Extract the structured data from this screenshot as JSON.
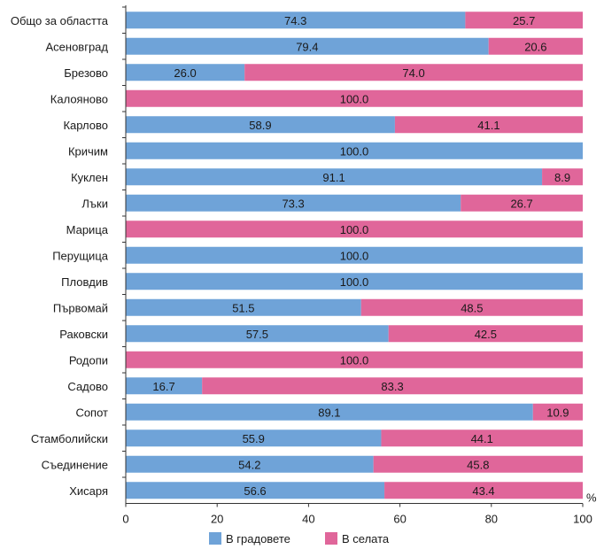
{
  "chart_data": {
    "type": "bar",
    "orientation": "horizontal",
    "stacked": true,
    "categories": [
      "Общо за областта",
      "Асеновград",
      "Брезово",
      "Калояново",
      "Карлово",
      "Кричим",
      "Куклен",
      "Лъки",
      "Марица",
      "Перущица",
      "Пловдив",
      "Първомай",
      "Раковски",
      "Родопи",
      "Садово",
      "Сопот",
      "Стамболийски",
      "Съединение",
      "Хисаря"
    ],
    "series": [
      {
        "name": "В градовете",
        "color": "#6fa3d8",
        "values": [
          74.3,
          79.4,
          26.0,
          0,
          58.9,
          100.0,
          91.1,
          73.3,
          0,
          100.0,
          100.0,
          51.5,
          57.5,
          0,
          16.7,
          89.1,
          55.9,
          54.2,
          56.6
        ]
      },
      {
        "name": "В селата",
        "color": "#e0669a",
        "values": [
          25.7,
          20.6,
          74.0,
          100.0,
          41.1,
          0,
          8.9,
          26.7,
          100.0,
          0,
          0,
          48.5,
          42.5,
          100.0,
          83.3,
          10.9,
          44.1,
          45.8,
          43.4
        ]
      }
    ],
    "labels": [
      [
        "74.3",
        "25.7"
      ],
      [
        "79.4",
        "20.6"
      ],
      [
        "26.0",
        "74.0"
      ],
      [
        "",
        "100.0"
      ],
      [
        "58.9",
        "41.1"
      ],
      [
        "100.0",
        ""
      ],
      [
        "91.1",
        "8.9"
      ],
      [
        "73.3",
        "26.7"
      ],
      [
        "",
        "100.0"
      ],
      [
        "100.0",
        ""
      ],
      [
        "100.0",
        ""
      ],
      [
        "51.5",
        "48.5"
      ],
      [
        "57.5",
        "42.5"
      ],
      [
        "",
        "100.0"
      ],
      [
        "16.7",
        "83.3"
      ],
      [
        "89.1",
        "10.9"
      ],
      [
        "55.9",
        "44.1"
      ],
      [
        "54.2",
        "45.8"
      ],
      [
        "56.6",
        "43.4"
      ]
    ],
    "xlim": [
      0,
      100
    ],
    "xticks": [
      "0",
      "20",
      "40",
      "60",
      "80",
      "100"
    ],
    "unit": "%",
    "legend_position": "bottom",
    "grid": false
  }
}
